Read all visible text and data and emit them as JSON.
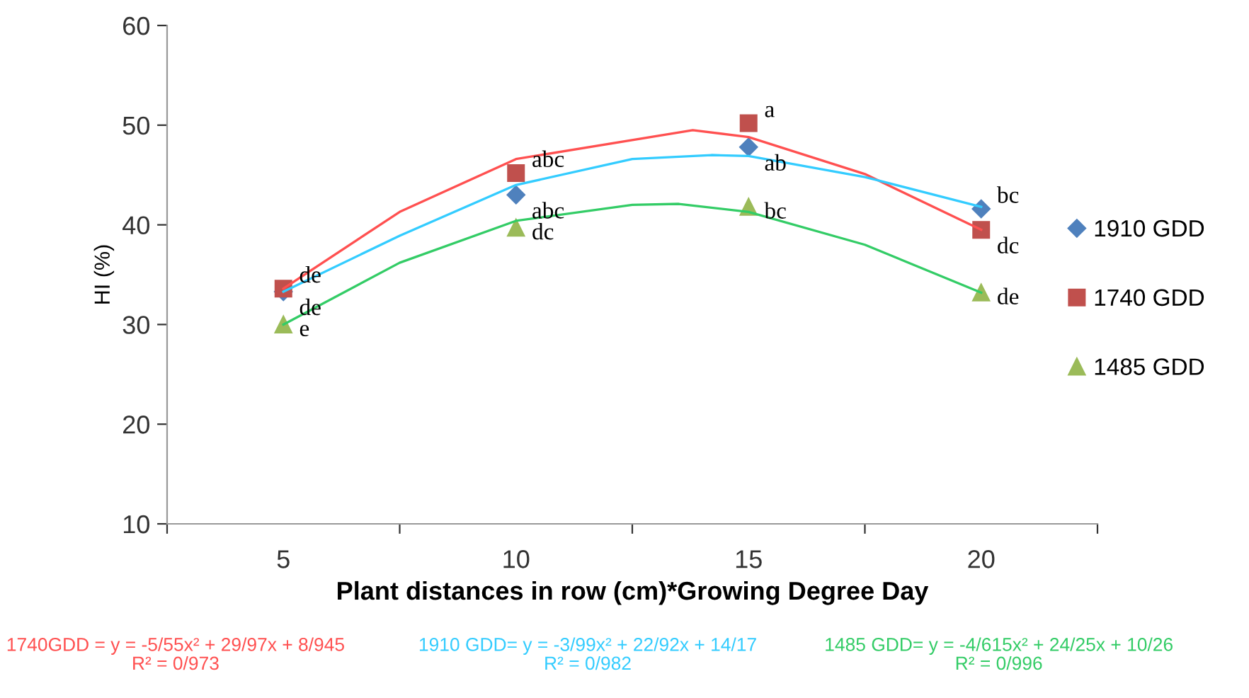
{
  "chart_data": {
    "type": "scatter",
    "xlabel": "Plant distances in row (cm)*Growing Degree Day",
    "ylabel": "HI (%)",
    "xlim": [
      2.5,
      22.5
    ],
    "xticks": [
      {
        "value": 2.5,
        "label": null
      },
      5,
      {
        "value": 7.5,
        "label": null
      },
      10,
      {
        "value": 12.5,
        "label": null
      },
      15,
      {
        "value": 17.5,
        "label": null
      },
      20,
      {
        "value": 22.5,
        "label": null
      }
    ],
    "ylim": [
      10,
      60
    ],
    "yticks": [
      10,
      20,
      30,
      40,
      50,
      60
    ],
    "grid": false,
    "legend": "right",
    "series": [
      {
        "name": "1910 GDD",
        "color": "#4f81bd",
        "marker": "diamond",
        "x": [
          5,
          10,
          15,
          20
        ],
        "values": [
          33.3,
          43.0,
          47.8,
          41.6
        ],
        "value_labels": [
          "de",
          "abc",
          "ab",
          "bc"
        ]
      },
      {
        "name": "1740 GDD",
        "color": "#c0504d",
        "marker": "square",
        "x": [
          5,
          10,
          15,
          20
        ],
        "values": [
          33.6,
          45.2,
          50.2,
          39.5
        ],
        "value_labels": [
          "de",
          "abc",
          "a",
          "dc"
        ]
      },
      {
        "name": "1485 GDD",
        "color": "#9bbb59",
        "marker": "triangle",
        "x": [
          5,
          10,
          15,
          20
        ],
        "values": [
          30.0,
          39.7,
          41.8,
          33.2
        ],
        "value_labels": [
          "e",
          "dc",
          "bc",
          "de"
        ]
      },
      {
        "type": "line",
        "color": "#ff5050",
        "x": [
          5,
          7.5,
          10,
          13.8,
          15,
          17.5,
          20
        ],
        "values": [
          33.6,
          41.3,
          46.6,
          49.5,
          48.8,
          45.1,
          39.5
        ]
      },
      {
        "type": "line",
        "color": "#33ccff",
        "x": [
          5,
          7.5,
          10,
          12.5,
          14.2,
          15,
          17.5,
          20
        ],
        "values": [
          33.3,
          38.9,
          44.0,
          46.6,
          47.0,
          46.9,
          44.8,
          41.8
        ]
      },
      {
        "type": "line",
        "color": "#33cc66",
        "x": [
          5,
          7.5,
          10,
          12.5,
          13.5,
          15,
          17.5,
          20
        ],
        "values": [
          30.0,
          36.2,
          40.4,
          42.0,
          42.1,
          41.3,
          38.0,
          33.2
        ]
      }
    ],
    "annotations": [
      "1740GDD = y = -5/55x² + 29/97x + 8/945\nR² = 0/973",
      "1910 GDD= y = -3/99x² + 22/92x + 14/17\nR² = 0/982",
      "1485 GDD= y = -4/615x² + 24/25x + 10/26\nR² = 0/996"
    ]
  }
}
